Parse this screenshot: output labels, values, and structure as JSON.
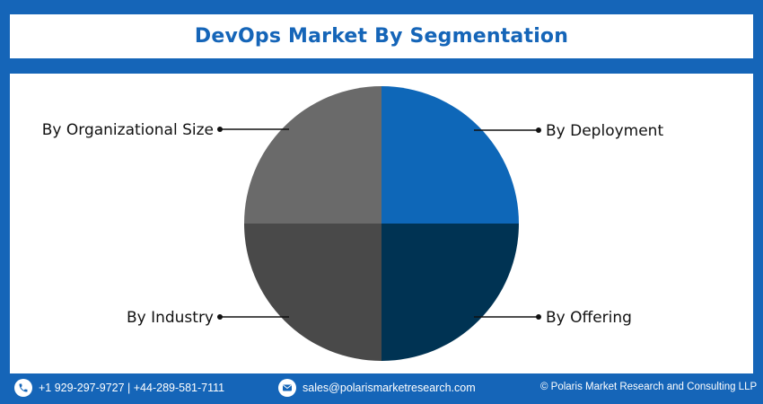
{
  "title": "DevOps Market By Segmentation",
  "chart_data": {
    "type": "pie",
    "title": "DevOps Market By Segmentation",
    "slices": [
      {
        "label": "By Deployment",
        "value": 25,
        "color": "#0e67b8"
      },
      {
        "label": "By Offering",
        "value": 25,
        "color": "#003353"
      },
      {
        "label": "By Industry",
        "value": 25,
        "color": "#494949"
      },
      {
        "label": "By Organizational Size",
        "value": 25,
        "color": "#6a6a6a"
      }
    ],
    "legend": "none"
  },
  "footer": {
    "phone": "+1 929-297-9727 | +44-289-581-7111",
    "email": "sales@polarismarketresearch.com",
    "copyright": "© Polaris Market Research and Consulting LLP",
    "phone_icon": "phone-icon",
    "email_icon": "email-icon"
  }
}
